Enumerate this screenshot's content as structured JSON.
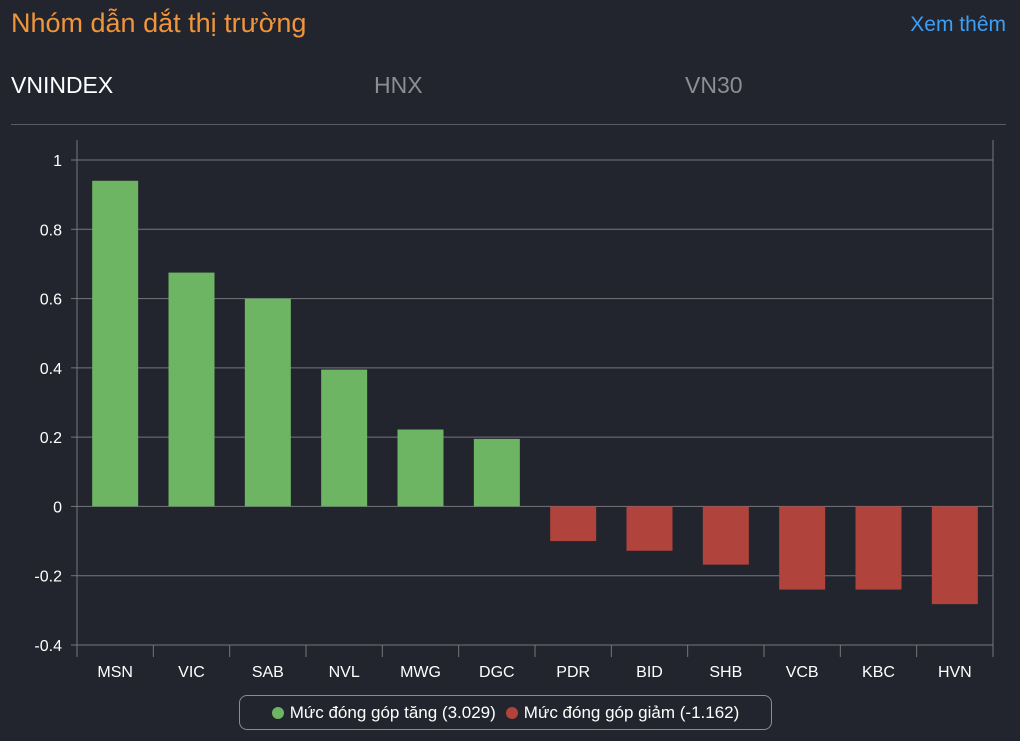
{
  "header": {
    "title": "Nhóm dẫn dắt thị trường",
    "more_label": "Xem thêm"
  },
  "tabs": [
    {
      "label": "VNINDEX",
      "active": true
    },
    {
      "label": "HNX",
      "active": false
    },
    {
      "label": "VN30",
      "active": false
    }
  ],
  "colors": {
    "positive": "#6db463",
    "negative": "#b0433b",
    "title": "#f0953a",
    "link": "#3d9ff5"
  },
  "chart_data": {
    "type": "bar",
    "categories": [
      "MSN",
      "VIC",
      "SAB",
      "NVL",
      "MWG",
      "DGC",
      "PDR",
      "BID",
      "SHB",
      "VCB",
      "KBC",
      "HVN"
    ],
    "values": [
      0.94,
      0.675,
      0.6,
      0.395,
      0.222,
      0.195,
      -0.1,
      -0.128,
      -0.168,
      -0.24,
      -0.24,
      -0.282
    ],
    "ylim": [
      -0.4,
      1
    ],
    "yticks": [
      "-0.4",
      "-0.2",
      "0",
      "0.2",
      "0.4",
      "0.6",
      "0.8",
      "1"
    ],
    "ytick_values": [
      -0.4,
      -0.2,
      0,
      0.2,
      0.4,
      0.6,
      0.8,
      1
    ],
    "grid": true,
    "legend_position": "bottom-center",
    "legend": [
      {
        "label": "Mức đóng góp tăng (3.029)",
        "color": "#6db463"
      },
      {
        "label": "Mức đóng góp giảm (-1.162)",
        "color": "#b0433b"
      }
    ]
  }
}
